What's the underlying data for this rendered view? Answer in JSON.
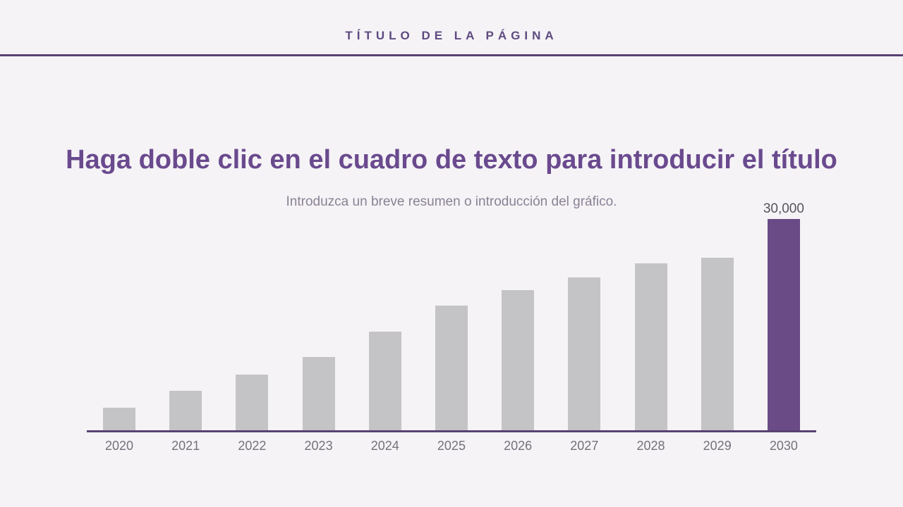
{
  "header": {
    "title": "TÍTULO DE LA PÁGINA"
  },
  "body": {
    "title": "Haga doble clic en el cuadro de texto para introducir el título",
    "subtitle": "Introduzca un breve resumen o introducción del gráfico."
  },
  "page": {
    "colors": {
      "background": "#f5f3f6",
      "accent": "#5a4273",
      "header_text": "#5e4a80",
      "title": "#6a4a8e",
      "subtitle": "#8a8294",
      "bar_gray": "#c4c3c6",
      "bar_highlight": "#6a4b86",
      "tick_label": "#74717a",
      "value_label": "#56535d"
    }
  },
  "chart_data": {
    "type": "bar",
    "title": "",
    "xlabel": "",
    "ylabel": "",
    "categories": [
      "2020",
      "2021",
      "2022",
      "2023",
      "2024",
      "2025",
      "2026",
      "2027",
      "2028",
      "2029",
      "2030"
    ],
    "values": [
      3200,
      5650,
      7950,
      10450,
      14050,
      17700,
      19900,
      21750,
      23750,
      24500,
      30000
    ],
    "value_labels": [
      null,
      null,
      null,
      null,
      null,
      null,
      null,
      null,
      null,
      null,
      "30,000"
    ],
    "highlight_index": 10,
    "ylim": [
      0,
      30000
    ],
    "grid": false,
    "legend": false,
    "bar_color": "#c4c3c6",
    "highlight_color": "#6a4b86",
    "axis_color": "#5a4273"
  }
}
